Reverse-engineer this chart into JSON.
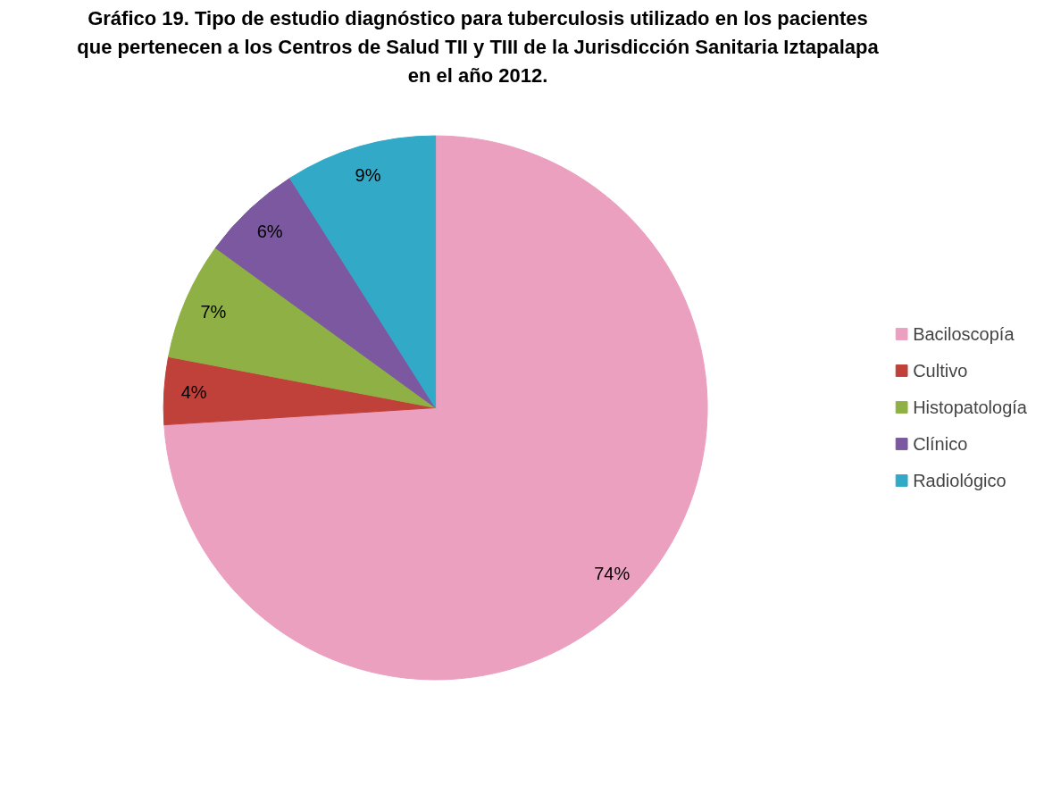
{
  "chart_data": {
    "type": "pie",
    "title": "Gráfico 19. Tipo de estudio diagnóstico para tuberculosis utilizado en los pacientes que pertenecen a los Centros de Salud TII y TIII de la Jurisdicción Sanitaria Iztapalapa en el año 2012.",
    "categories": [
      "Baciloscopía",
      "Cultivo",
      "Histopatología",
      "Clínico",
      "Radiológico"
    ],
    "values": [
      74,
      4,
      7,
      6,
      9
    ],
    "colors": [
      "#eba0c0",
      "#c0403a",
      "#8fb045",
      "#7b58a0",
      "#33a9c8"
    ],
    "value_labels": [
      "74%",
      "4%",
      "7%",
      "6%",
      "9%"
    ],
    "legend": "right"
  }
}
